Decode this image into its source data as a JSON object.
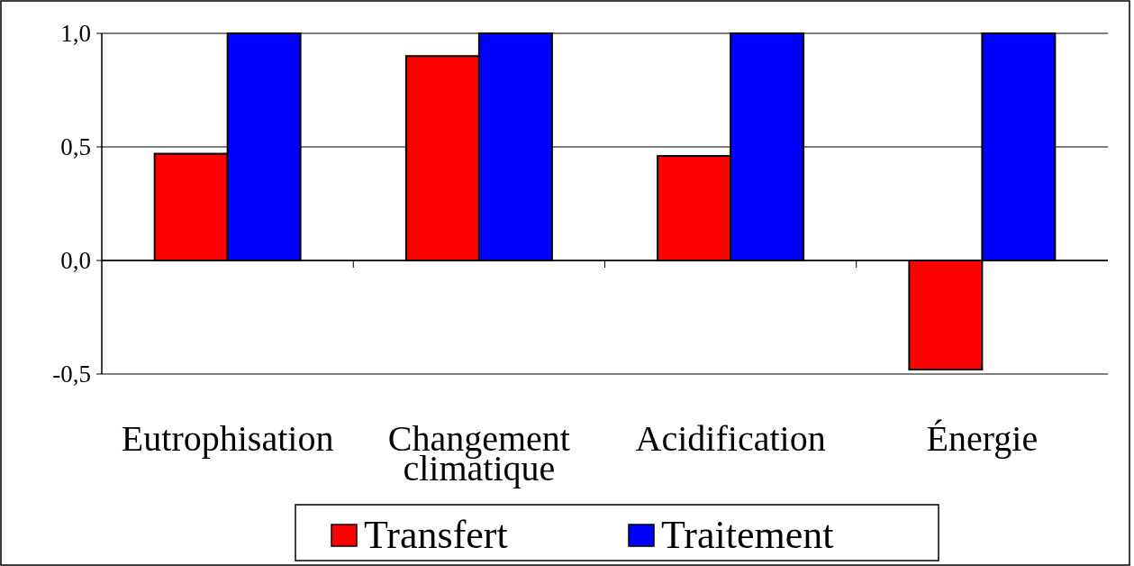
{
  "chart_data": {
    "type": "bar",
    "categories": [
      "Eutrophisation",
      "Changement climatique",
      "Acidification",
      "Énergie"
    ],
    "series": [
      {
        "name": "Transfert",
        "color": "#ff0000",
        "values": [
          0.47,
          0.9,
          0.46,
          -0.48
        ]
      },
      {
        "name": "Traitement",
        "color": "#0000ff",
        "values": [
          1,
          1,
          1,
          1
        ]
      }
    ],
    "ylim": [
      -0.5,
      1.0
    ],
    "yticks": [
      {
        "value": -0.5,
        "label": "-0,5"
      },
      {
        "value": 0,
        "label": "0,0"
      },
      {
        "value": 0.5,
        "label": "0,5"
      },
      {
        "value": 1,
        "label": "1,0"
      }
    ],
    "grid": "y",
    "legend": "bottom"
  }
}
